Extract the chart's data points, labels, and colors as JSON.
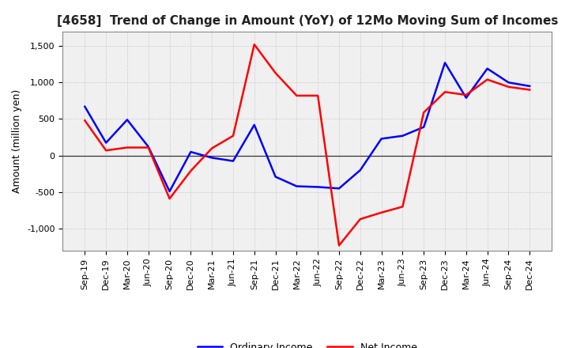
{
  "title": "[4658]  Trend of Change in Amount (YoY) of 12Mo Moving Sum of Incomes",
  "ylabel": "Amount (million yen)",
  "x_labels": [
    "Sep-19",
    "Dec-19",
    "Mar-20",
    "Jun-20",
    "Sep-20",
    "Dec-20",
    "Mar-21",
    "Jun-21",
    "Sep-21",
    "Dec-21",
    "Mar-22",
    "Jun-22",
    "Sep-22",
    "Dec-22",
    "Mar-23",
    "Jun-23",
    "Sep-23",
    "Dec-23",
    "Mar-24",
    "Jun-24",
    "Sep-24",
    "Dec-24"
  ],
  "ordinary_income": [
    670,
    175,
    490,
    120,
    -490,
    50,
    -30,
    -75,
    420,
    -290,
    -420,
    -430,
    -450,
    -200,
    230,
    270,
    390,
    1270,
    790,
    1190,
    1000,
    950
  ],
  "net_income": [
    480,
    70,
    110,
    110,
    -590,
    -210,
    100,
    270,
    1520,
    1130,
    820,
    820,
    -1230,
    -870,
    -780,
    -700,
    590,
    870,
    830,
    1040,
    940,
    900
  ],
  "ordinary_income_color": "#0000ff",
  "net_income_color": "#ff0000",
  "ylim": [
    -1300,
    1700
  ],
  "yticks": [
    -1000,
    -500,
    0,
    500,
    1000,
    1500
  ],
  "background_color": "#ffffff",
  "plot_bg_color": "#f0f0f0",
  "grid_color": "#bbbbbb",
  "legend_labels": [
    "Ordinary Income",
    "Net Income"
  ],
  "line_width": 1.8,
  "title_fontsize": 11,
  "ylabel_fontsize": 9,
  "tick_fontsize": 8,
  "legend_fontsize": 9
}
